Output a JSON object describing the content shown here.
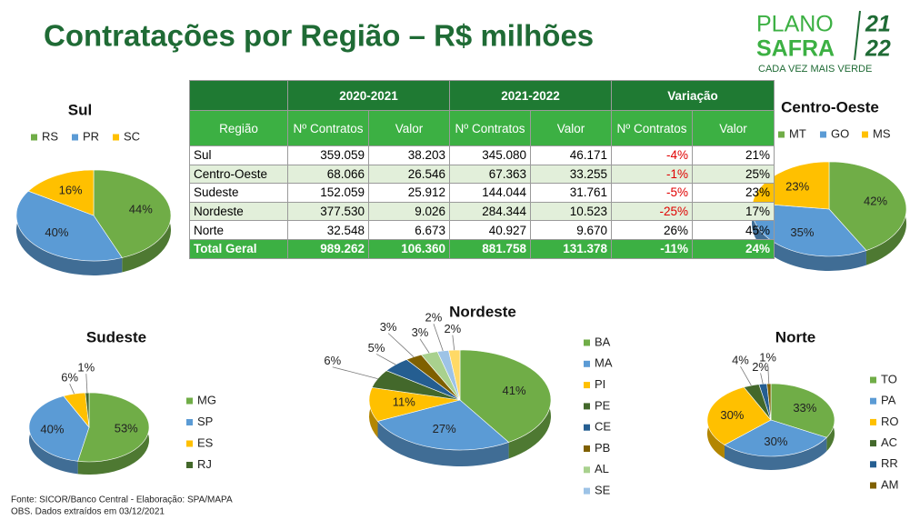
{
  "title": "Contratações por Região – R$ milhões",
  "logo": {
    "line1": "PLANO",
    "year1": "21",
    "line2": "SAFRA",
    "year2": "22",
    "tagline": "CADA VEZ MAIS VERDE"
  },
  "table": {
    "groups": [
      "2020-2021",
      "2021-2022",
      "Variação"
    ],
    "columns": [
      "Região",
      "Nº Contratos",
      "Valor",
      "Nº Contratos",
      "Valor",
      "Nº Contratos",
      "Valor"
    ],
    "rows": [
      [
        "Sul",
        "359.059",
        "38.203",
        "345.080",
        "46.171",
        "-4%",
        "21%"
      ],
      [
        "Centro-Oeste",
        "68.066",
        "26.546",
        "67.363",
        "33.255",
        "-1%",
        "25%"
      ],
      [
        "Sudeste",
        "152.059",
        "25.912",
        "144.044",
        "31.761",
        "-5%",
        "23%"
      ],
      [
        "Nordeste",
        "377.530",
        "9.026",
        "284.344",
        "10.523",
        "-25%",
        "17%"
      ],
      [
        "Norte",
        "32.548",
        "6.673",
        "40.927",
        "9.670",
        "26%",
        "45%"
      ]
    ],
    "total": [
      "Total Geral",
      "989.262",
      "106.360",
      "881.758",
      "131.378",
      "-11%",
      "24%"
    ]
  },
  "chart_data": [
    {
      "type": "pie",
      "title": "Sul",
      "categories": [
        "RS",
        "PR",
        "SC"
      ],
      "values": [
        44,
        40,
        16
      ],
      "value_labels": [
        "44%",
        "40%",
        "16%"
      ],
      "colors": [
        "#70ad47",
        "#5b9bd5",
        "#ffc000"
      ]
    },
    {
      "type": "pie",
      "title": "Centro-Oeste",
      "categories": [
        "MT",
        "GO",
        "MS"
      ],
      "values": [
        42,
        35,
        23
      ],
      "value_labels": [
        "42%",
        "35%",
        "23%"
      ],
      "colors": [
        "#70ad47",
        "#5b9bd5",
        "#ffc000"
      ]
    },
    {
      "type": "pie",
      "title": "Sudeste",
      "categories": [
        "MG",
        "SP",
        "ES",
        "RJ"
      ],
      "values": [
        53,
        40,
        6,
        1
      ],
      "value_labels": [
        "53%",
        "40%",
        "6%",
        "1%"
      ],
      "colors": [
        "#70ad47",
        "#5b9bd5",
        "#ffc000",
        "#43682b"
      ]
    },
    {
      "type": "pie",
      "title": "Nordeste",
      "categories": [
        "BA",
        "MA",
        "PI",
        "PE",
        "CE",
        "PB",
        "AL",
        "SE",
        null
      ],
      "values": [
        41,
        27,
        11,
        6,
        5,
        3,
        3,
        2,
        2
      ],
      "value_labels": [
        "41%",
        "27%",
        "11%",
        "6%",
        "5%",
        "3%",
        "3%",
        "2%",
        "2%"
      ],
      "colors": [
        "#70ad47",
        "#5b9bd5",
        "#ffc000",
        "#43682b",
        "#255e91",
        "#7f6000",
        "#a9d18e",
        "#9dc3e6",
        "#ffd966"
      ]
    },
    {
      "type": "pie",
      "title": "Norte",
      "categories": [
        "TO",
        "PA",
        "RO",
        "AC",
        "RR",
        "AM"
      ],
      "values": [
        33,
        30,
        30,
        4,
        2,
        1
      ],
      "value_labels": [
        "33%",
        "30%",
        "30%",
        "4%",
        "2%",
        "1%"
      ],
      "colors": [
        "#70ad47",
        "#5b9bd5",
        "#ffc000",
        "#43682b",
        "#255e91",
        "#7f6000"
      ]
    }
  ],
  "footer": {
    "source": "Fonte: SICOR/Banco Central - Elaboração: SPA/MAPA",
    "note": "OBS. Dados extraídos em 03/12/2021"
  }
}
